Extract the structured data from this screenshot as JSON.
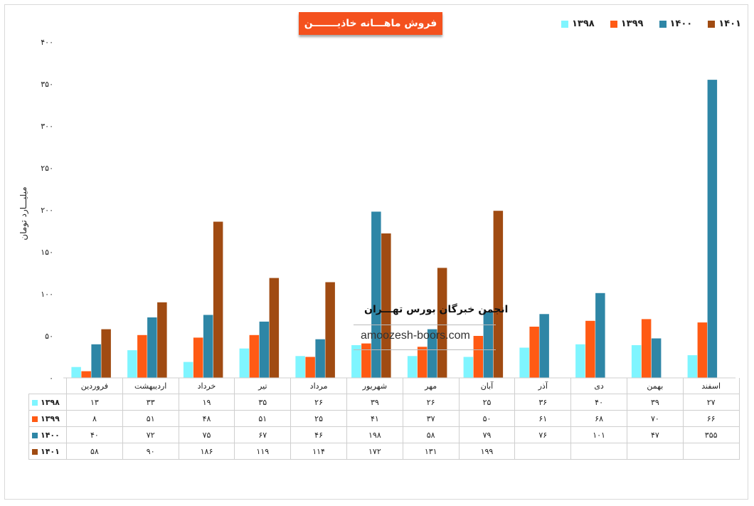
{
  "title": "فروش ماهـــانه خاذیـــــــن",
  "ylabel": "میلیـــارد تومان",
  "watermark": {
    "name": "انجمن خبرگان بورس تهـــران",
    "site": "amoozesh-boors.com"
  },
  "colors": {
    "1398": "#7ff5ff",
    "1399": "#ff5a14",
    "1400": "#2e86a6",
    "1401": "#a04b12"
  },
  "chart_data": {
    "type": "bar",
    "ylim": [
      0,
      400
    ],
    "yticks": [
      "۰",
      "۵۰",
      "۱۰۰",
      "۱۵۰",
      "۲۰۰",
      "۲۵۰",
      "۳۰۰",
      "۳۵۰",
      "۴۰۰"
    ],
    "categories": [
      "فروردین",
      "اردیبهشت",
      "خرداد",
      "تیر",
      "مرداد",
      "شهریور",
      "مهر",
      "آبان",
      "آذر",
      "دی",
      "بهمن",
      "اسفند"
    ],
    "series": [
      {
        "name": "۱۳۹۸",
        "key": "1398",
        "values": [
          13,
          33,
          19,
          35,
          26,
          39,
          26,
          25,
          36,
          40,
          39,
          27
        ],
        "labels": [
          "۱۳",
          "۳۳",
          "۱۹",
          "۳۵",
          "۲۶",
          "۳۹",
          "۲۶",
          "۲۵",
          "۳۶",
          "۴۰",
          "۳۹",
          "۲۷"
        ]
      },
      {
        "name": "۱۳۹۹",
        "key": "1399",
        "values": [
          8,
          51,
          48,
          51,
          25,
          41,
          37,
          50,
          61,
          68,
          70,
          66
        ],
        "labels": [
          "۸",
          "۵۱",
          "۴۸",
          "۵۱",
          "۲۵",
          "۴۱",
          "۳۷",
          "۵۰",
          "۶۱",
          "۶۸",
          "۷۰",
          "۶۶"
        ]
      },
      {
        "name": "۱۴۰۰",
        "key": "1400",
        "values": [
          40,
          72,
          75,
          67,
          46,
          198,
          58,
          79,
          76,
          101,
          47,
          355
        ],
        "labels": [
          "۴۰",
          "۷۲",
          "۷۵",
          "۶۷",
          "۴۶",
          "۱۹۸",
          "۵۸",
          "۷۹",
          "۷۶",
          "۱۰۱",
          "۴۷",
          "۳۵۵"
        ]
      },
      {
        "name": "۱۴۰۱",
        "key": "1401",
        "values": [
          58,
          90,
          186,
          119,
          114,
          172,
          131,
          199,
          null,
          null,
          null,
          null
        ],
        "labels": [
          "۵۸",
          "۹۰",
          "۱۸۶",
          "۱۱۹",
          "۱۱۴",
          "۱۷۲",
          "۱۳۱",
          "۱۹۹",
          "",
          "",
          "",
          ""
        ]
      }
    ],
    "legend_order": [
      "1398",
      "1399",
      "1400",
      "1401"
    ],
    "legend_position": "top-right",
    "grid": false
  }
}
